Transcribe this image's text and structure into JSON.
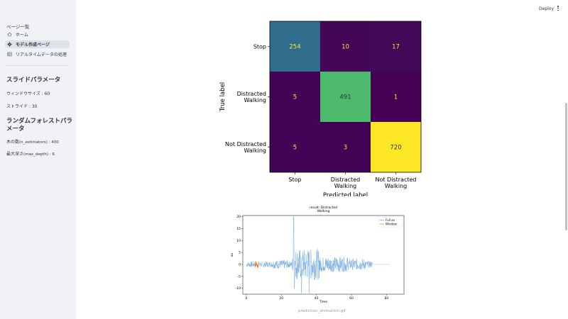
{
  "sidebar": {
    "heading": "ページ一覧",
    "items": [
      {
        "label": "ホーム",
        "icon": "home-icon",
        "active": false
      },
      {
        "label": "モデル作成ページ",
        "icon": "gear-icon",
        "active": true
      },
      {
        "label": "リアルタイムデータの処理",
        "icon": "table-icon",
        "active": false
      }
    ],
    "slide_title": "スライドパラメータ",
    "window_label": "ウィンドウサイズ : 60",
    "stride_label": "ストライド : 30",
    "rf_title": "ランダムフォレストパラメータ",
    "n_est_prefix": "木の数",
    "n_est_suffix": "(n_estimators) : 400",
    "depth_prefix": "最大深さ",
    "depth_suffix": "(max_depth) : 6"
  },
  "header": {
    "deploy_label": "Deploy",
    "menu_icon": "kebab-menu-icon"
  },
  "confusion_matrix": {
    "type": "heatmap",
    "labels": [
      "Stop",
      "Distracted Walking",
      "Not Distracted Walking"
    ],
    "xlabel": "Predicted label",
    "ylabel": "True label",
    "matrix": [
      [
        254,
        10,
        17
      ],
      [
        5,
        491,
        1
      ],
      [
        5,
        3,
        720
      ]
    ],
    "colormap": "viridis"
  },
  "chart_data": {
    "type": "line",
    "title": "result: Distracted Walking",
    "xlabel": "Time",
    "ylabel": "ax",
    "xlim": [
      -2,
      90
    ],
    "ylim": [
      -12.5,
      20.5
    ],
    "x_ticks": [
      0,
      20,
      40,
      60,
      80
    ],
    "y_ticks": [
      -10,
      -5,
      0,
      5,
      10,
      15,
      20
    ],
    "legend_position": "top-right",
    "series": [
      {
        "name": "Full ax",
        "color": "#6fa8dc"
      },
      {
        "name": "Window",
        "color": "#ff7f0e"
      }
    ]
  },
  "caption": "prediction_animation.gif"
}
